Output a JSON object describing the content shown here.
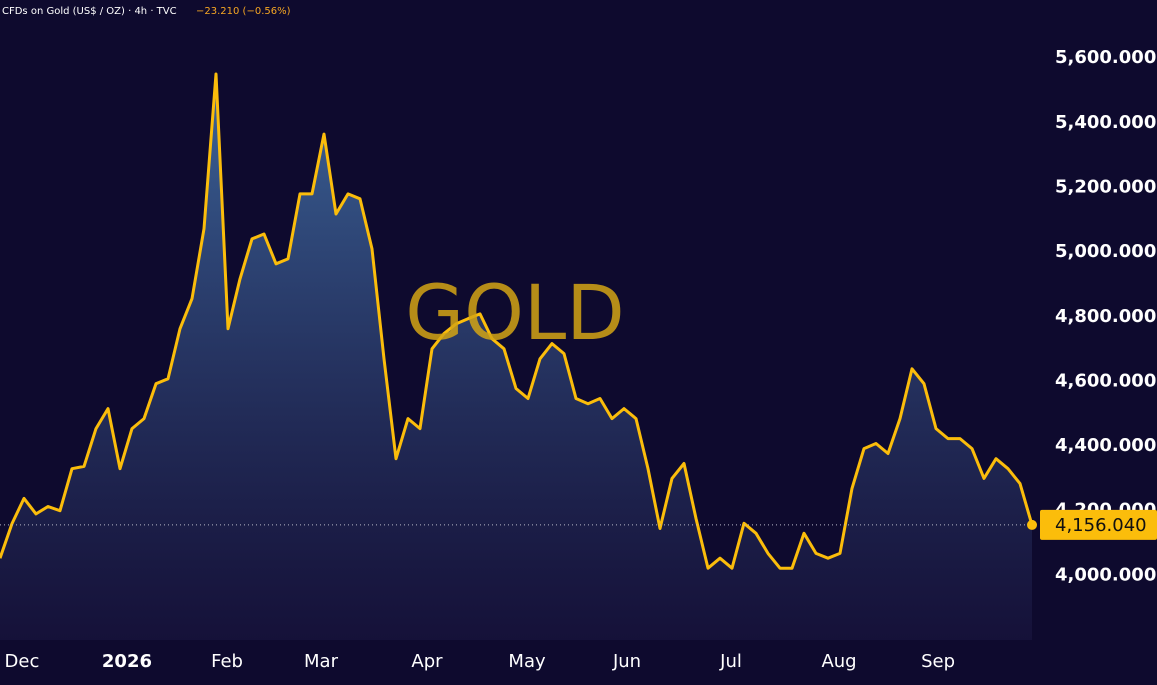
{
  "chart_data": {
    "type": "area",
    "title": "CFDs on Gold (US$ / OZ) · 4h · TVC",
    "change": "−23.210 (−0.56%)",
    "watermark": "GOLD",
    "series": [
      {
        "name": "Gold",
        "color": "#fbbd0b",
        "values": [
          4053,
          4160,
          4238,
          4190,
          4213,
          4200,
          4330,
          4337,
          4454,
          4516,
          4330,
          4454,
          4485,
          4593,
          4608,
          4763,
          4856,
          5072,
          5551,
          4763,
          4917,
          5041,
          5056,
          4964,
          4979,
          5180,
          5180,
          5365,
          5118,
          5180,
          5165,
          5010,
          4670,
          4361,
          4485,
          4454,
          4701,
          4748,
          4778,
          4794,
          4809,
          4732,
          4701,
          4578,
          4547,
          4670,
          4717,
          4686,
          4547,
          4531,
          4547,
          4485,
          4516,
          4485,
          4330,
          4145,
          4300,
          4346,
          4176,
          4022,
          4053,
          4022,
          4161,
          4130,
          4068,
          4022,
          4022,
          4130,
          4068,
          4053,
          4068,
          4269,
          4392,
          4408,
          4377,
          4485,
          4639,
          4593,
          4454,
          4423,
          4423,
          4392,
          4300,
          4361,
          4330,
          4284,
          4156.04
        ]
      }
    ],
    "last_price_label": "4,156.040",
    "xlim": [
      0,
      86
    ],
    "xticks": [
      {
        "value": 1.83,
        "label": "Dec"
      },
      {
        "value": 10.58,
        "label": "2026"
      },
      {
        "value": 18.92,
        "label": "Feb"
      },
      {
        "value": 26.75,
        "label": "Mar"
      },
      {
        "value": 35.58,
        "label": "Apr"
      },
      {
        "value": 43.92,
        "label": "May"
      },
      {
        "value": 52.25,
        "label": "Jun"
      },
      {
        "value": 60.92,
        "label": "Jul"
      },
      {
        "value": 69.92,
        "label": "Aug"
      },
      {
        "value": 78.17,
        "label": "Sep"
      }
    ],
    "ylim": [
      3800,
      5780
    ],
    "yticks": [
      {
        "value": 4000,
        "label": "4,000.000"
      },
      {
        "value": 4200,
        "label": "4,200.000"
      },
      {
        "value": 4400,
        "label": "4,400.000"
      },
      {
        "value": 4600,
        "label": "4,600.000"
      },
      {
        "value": 4800,
        "label": "4,800.000"
      },
      {
        "value": 5000,
        "label": "5,000.000"
      },
      {
        "value": 5200,
        "label": "5,200.000"
      },
      {
        "value": 5400,
        "label": "5,400.000"
      },
      {
        "value": 5600,
        "label": "5,600.000"
      }
    ]
  }
}
